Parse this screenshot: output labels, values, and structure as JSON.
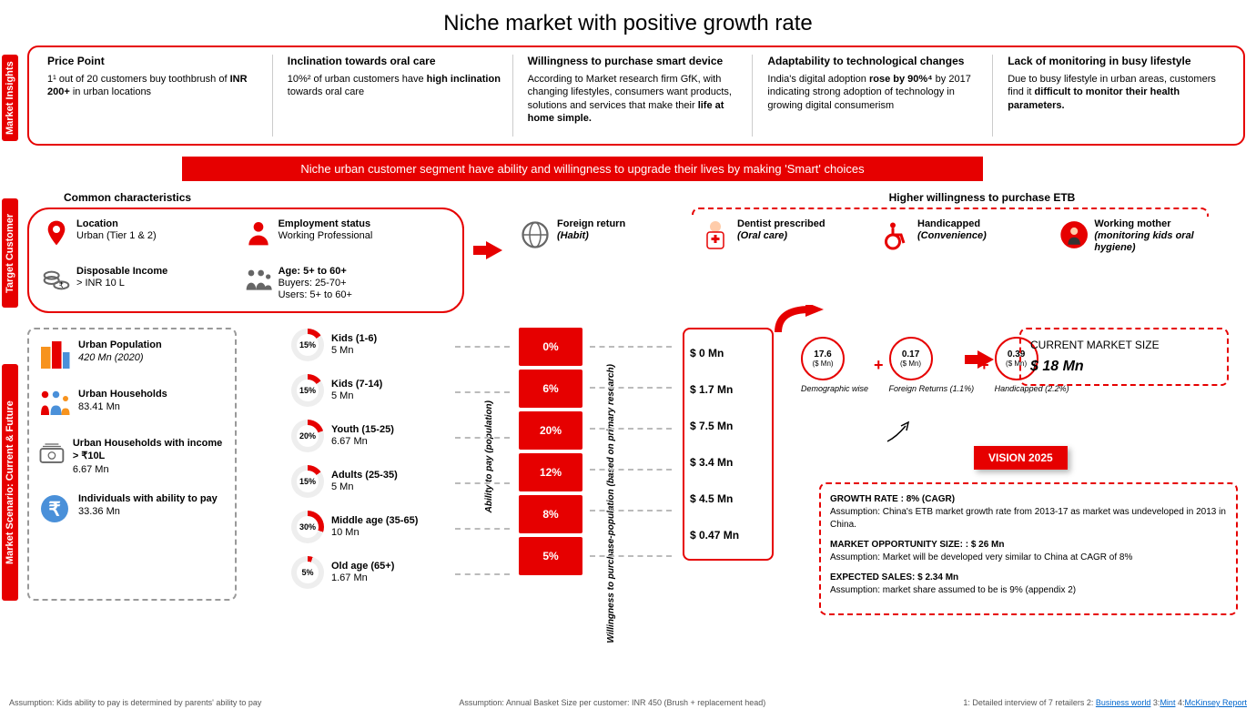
{
  "title": "Niche market with positive growth rate",
  "tabs": {
    "insights": "Market Insights",
    "target": "Target Customer",
    "scenario": "Market Scenario: Current & Future"
  },
  "insights": [
    {
      "h": "Price Point",
      "p": "1¹ out of 20 customers buy toothbrush of <b>INR 200+</b> in urban locations"
    },
    {
      "h": "Inclination towards oral care",
      "p": "10%² of urban customers have <b>high inclination</b> towards oral care"
    },
    {
      "h": "Willingness to purchase smart device",
      "p": "According to Market research firm GfK, with changing lifestyles, consumers want products, solutions and services that make their <b>life at home simple.</b>"
    },
    {
      "h": "Adaptability to technological changes",
      "p": "India's digital adoption <b>rose by 90%⁴</b> by 2017 indicating strong adoption of technology in growing digital consumerism"
    },
    {
      "h": "Lack of monitoring in busy lifestyle",
      "p": "Due to busy lifestyle in urban areas, customers find it <b>difficult to monitor their health parameters.</b>"
    }
  ],
  "banner": "Niche urban customer segment have ability and willingness to upgrade their lives by making 'Smart' choices",
  "char_title": "Common characteristics",
  "characteristics": [
    {
      "icon": "pin",
      "title": "Location",
      "sub": "Urban (Tier 1 & 2)"
    },
    {
      "icon": "person",
      "title": "Employment status",
      "sub": "Working Professional"
    },
    {
      "icon": "coins",
      "title": "Disposable Income",
      "sub": "> INR 10 L"
    },
    {
      "icon": "family",
      "title": "Age: 5+ to 60+",
      "sub": "Buyers: 25-70+\nUsers: 5+ to 60+"
    }
  ],
  "etb_title": "Higher willingness to purchase ETB",
  "etb": [
    {
      "icon": "globe",
      "title": "Foreign return",
      "sub": "(Habit)"
    },
    {
      "icon": "dentist",
      "title": "Dentist prescribed",
      "sub": "(Oral care)"
    },
    {
      "icon": "wheelchair",
      "title": "Handicapped",
      "sub": "(Convenience)"
    },
    {
      "icon": "mother",
      "title": "Working mother",
      "sub": "(monitoring kids oral hygiene)"
    }
  ],
  "population": [
    {
      "icon": "building",
      "title": "Urban Population",
      "sub": "420 Mn  (2020)",
      "italic": true
    },
    {
      "icon": "family2",
      "title": "Urban Households",
      "sub": "83.41 Mn"
    },
    {
      "icon": "money",
      "title": "Urban Households with income > ₹10L",
      "sub": "6.67 Mn"
    },
    {
      "icon": "rupee",
      "title": "Individuals with ability to pay",
      "sub": "33.36 Mn"
    }
  ],
  "ages": [
    {
      "pct": 15,
      "label": "Kids (1-6)",
      "sub": "5 Mn"
    },
    {
      "pct": 15,
      "label": "Kids (7-14)",
      "sub": "5 Mn"
    },
    {
      "pct": 20,
      "label": "Youth (15-25)",
      "sub": "6.67 Mn"
    },
    {
      "pct": 15,
      "label": "Adults (25-35)",
      "sub": "5 Mn"
    },
    {
      "pct": 30,
      "label": "Middle age (35-65)",
      "sub": "10 Mn"
    },
    {
      "pct": 5,
      "label": "Old age (65+)",
      "sub": "1.67 Mn"
    }
  ],
  "ability_label": "Ability to pay\n(population)",
  "willing_label": "Willingness to purchase-population\n(based on primary research)",
  "willing": [
    "0%",
    "6%",
    "20%",
    "12%",
    "8%",
    "5%"
  ],
  "mn": [
    "$ 0 Mn",
    "$ 1.7 Mn",
    "$ 7.5 Mn",
    "$ 3.4 Mn",
    "$ 4.5 Mn",
    "$ 0.47 Mn"
  ],
  "calc": [
    {
      "v": "17.6",
      "s": "($ Mn)",
      "lbl": "Demographic wise"
    },
    {
      "v": "0.17",
      "s": "($ Mn)",
      "lbl": "Foreign Returns (1.1%)"
    },
    {
      "v": "0.39",
      "s": "($ Mn)",
      "lbl": "Handicapped (2.2%)"
    }
  ],
  "cms": {
    "title": "CURRENT MARKET SIZE",
    "val": "$ 18  Mn"
  },
  "vision": "VISION 2025",
  "growth": [
    {
      "h": "GROWTH RATE : 8% (CAGR)",
      "p": "Assumption: China's ETB market growth rate from 2013-17 as market was undeveloped in 2013 in China."
    },
    {
      "h": "MARKET OPPORTUNITY SIZE: : $ 26 Mn",
      "p": "Assumption: Market will be developed very similar to China at CAGR of 8%"
    },
    {
      "h": "EXPECTED SALES: $ 2.34 Mn",
      "p": "Assumption: market share assumed to be is 9% (appendix 2)"
    }
  ],
  "footers": {
    "l": "Assumption: Kids ability to pay is determined by parents' ability to pay",
    "m": "Assumption: Annual Basket Size per customer: INR 450 (Brush  + replacement head)",
    "r": "1: Detailed interview of 7 retailers 2: Business world 3:Mint 4:McKinsey Report"
  },
  "colors": {
    "red": "#e60000",
    "grey": "#999"
  }
}
